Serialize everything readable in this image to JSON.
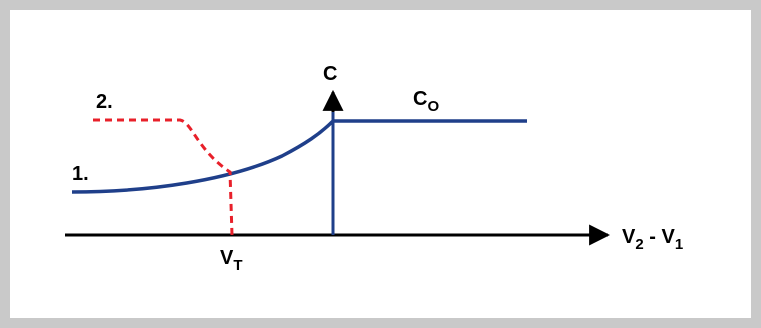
{
  "diagram": {
    "axis_labels": {
      "y": "C",
      "x_main": "V",
      "x_sub1": "2",
      "x_sep": " - V",
      "x_sub2": "1"
    },
    "marker": {
      "main": "V",
      "sub": "T"
    },
    "asymptote": {
      "main": "C",
      "sub": "O"
    },
    "curve_labels": {
      "curve1": "1.",
      "curve2": "2."
    },
    "colors": {
      "curve1": "#1f3f8a",
      "curve2": "#e8202a",
      "axis": "#000000",
      "border": "#c9c9c9"
    }
  }
}
